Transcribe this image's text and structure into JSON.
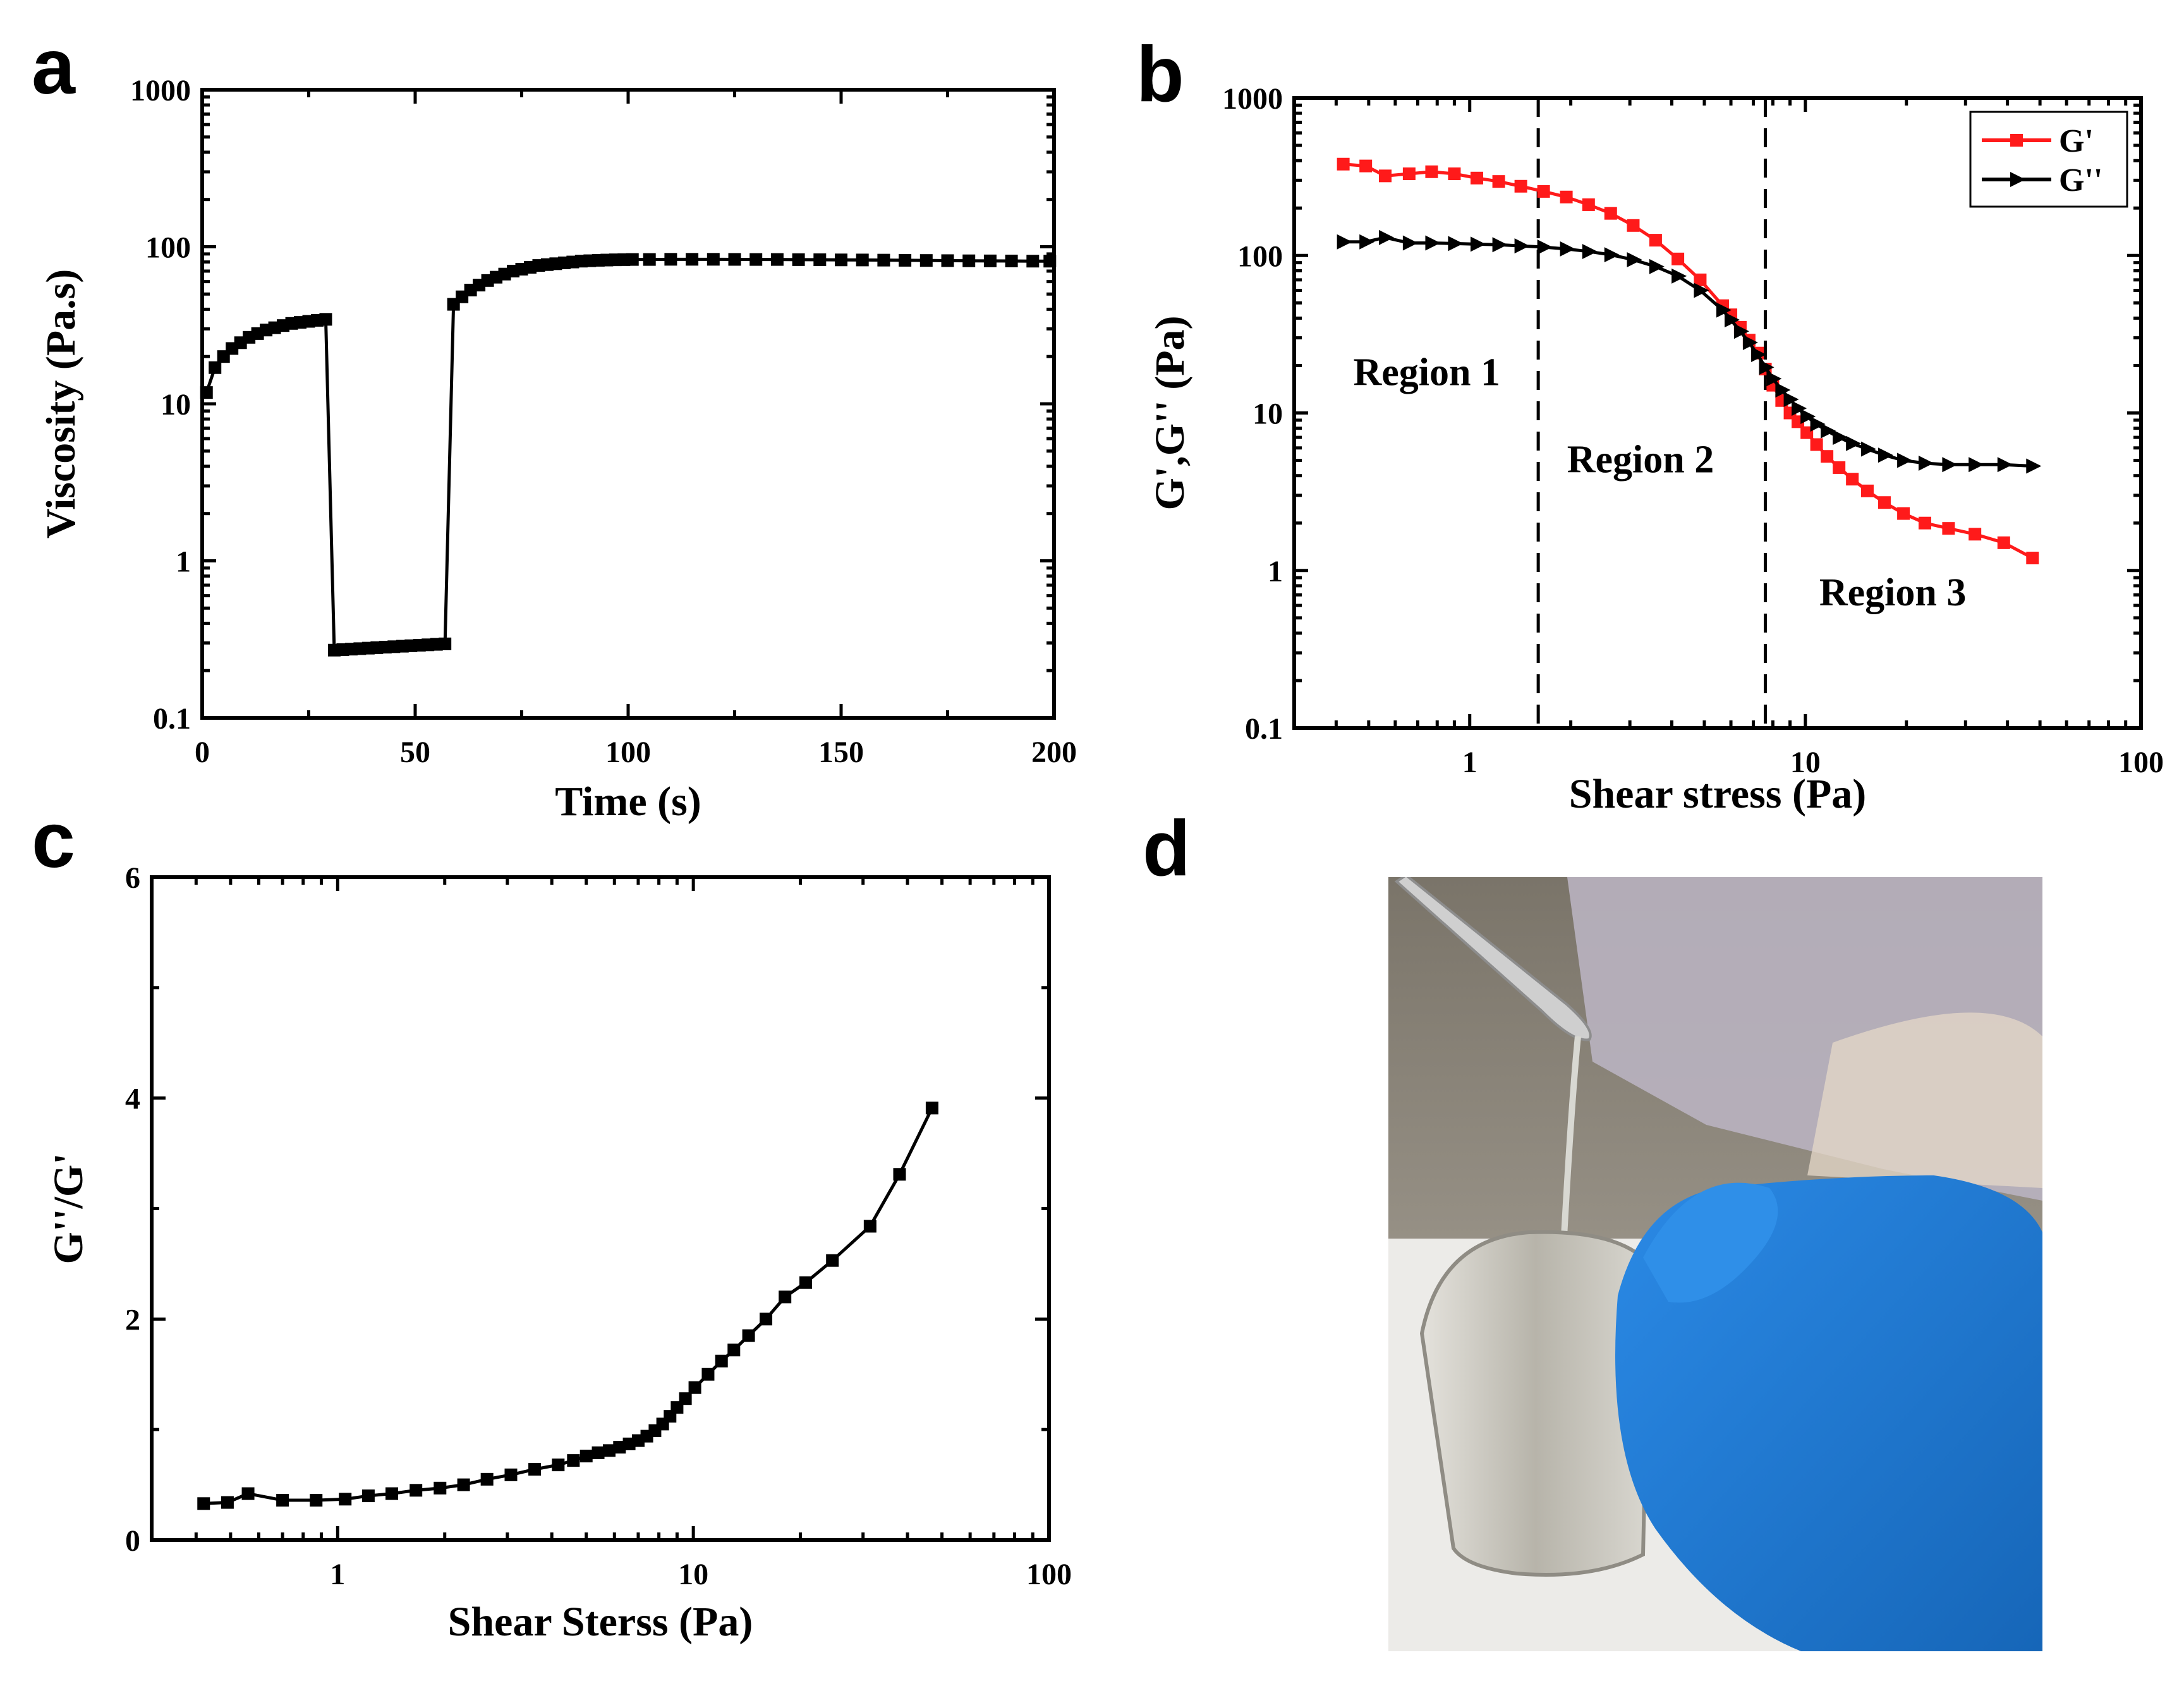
{
  "panels": {
    "a": "a",
    "b": "b",
    "c": "c",
    "d": "d"
  },
  "photo": {
    "description": "spatula dripping gel into beaker held by gloved hand",
    "colors": {
      "glove": "#1f7fd6",
      "background_top": "#8a8378",
      "coat": "#b9b3c0",
      "beaker": "#c8c6bd"
    }
  },
  "chart_data": [
    {
      "id": "a",
      "type": "scatter",
      "title": "",
      "xlabel": "Time (s)",
      "ylabel": "Viscosity (Pa.s)",
      "xscale": "linear",
      "yscale": "log",
      "xlim": [
        0,
        200
      ],
      "ylim": [
        0.1,
        1000
      ],
      "xticks": [
        0,
        50,
        100,
        150,
        200
      ],
      "xtick_labels": [
        "0",
        "50",
        "100",
        "150",
        "200"
      ],
      "yticks": [
        0.1,
        1,
        10,
        100,
        1000
      ],
      "ytick_labels": [
        "0.1",
        "1",
        "10",
        "100",
        "1000"
      ],
      "series": [
        {
          "name": "Viscosity",
          "color": "#000000",
          "marker": "square",
          "x": [
            1,
            3,
            5,
            7,
            9,
            11,
            13,
            15,
            17,
            19,
            21,
            23,
            25,
            27,
            29,
            31,
            33,
            35,
            37,
            39,
            41,
            43,
            45,
            47,
            49,
            51,
            53,
            55,
            57,
            59,
            61,
            63,
            65,
            67,
            69,
            71,
            73,
            75,
            77,
            79,
            81,
            83,
            85,
            87,
            89,
            91,
            93,
            95,
            97,
            99,
            101,
            105,
            110,
            115,
            120,
            125,
            130,
            135,
            140,
            145,
            150,
            155,
            160,
            165,
            170,
            175,
            180,
            185,
            190,
            195,
            199
          ],
          "y": [
            11.8,
            17,
            20,
            22.5,
            24.5,
            26.5,
            28,
            29.5,
            30.5,
            31.5,
            32.5,
            33,
            33.5,
            34,
            34.5,
            0.27,
            0.272,
            0.274,
            0.276,
            0.278,
            0.28,
            0.282,
            0.284,
            0.286,
            0.288,
            0.29,
            0.292,
            0.294,
            0.296,
            43,
            48,
            53,
            57,
            61,
            64,
            67,
            70,
            72,
            74,
            76,
            77,
            78,
            79,
            80,
            81,
            81.5,
            82,
            82.3,
            82.6,
            82.8,
            83,
            83,
            83.2,
            83.2,
            83.2,
            83.1,
            83,
            83,
            82.8,
            82.7,
            82.5,
            82.4,
            82.2,
            82,
            81.8,
            81.6,
            81.4,
            81.3,
            81.2,
            81,
            81
          ]
        }
      ]
    },
    {
      "id": "b",
      "type": "line",
      "title": "",
      "xlabel": "Shear stress (Pa)",
      "ylabel": "G',G'' (Pa)",
      "xscale": "log",
      "yscale": "log",
      "xlim": [
        0.3,
        100
      ],
      "ylim": [
        0.1,
        1000
      ],
      "xticks": [
        1,
        10,
        100
      ],
      "xtick_labels": [
        "1",
        "10",
        "100"
      ],
      "yticks": [
        0.1,
        1,
        10,
        100,
        1000
      ],
      "ytick_labels": [
        "0.1",
        "1",
        "10",
        "100",
        "1000"
      ],
      "vlines": [
        1.6,
        7.6
      ],
      "annotations": [
        {
          "text": "Region 1",
          "x": 0.45,
          "y": 15
        },
        {
          "text": "Region 2",
          "x": 1.95,
          "y": 4.2
        },
        {
          "text": "Region 3",
          "x": 11,
          "y": 0.6
        }
      ],
      "legend": "top-right",
      "series": [
        {
          "name": "G'",
          "color": "#ff1a1a",
          "marker": "square",
          "x": [
            0.42,
            0.49,
            0.56,
            0.66,
            0.77,
            0.9,
            1.05,
            1.22,
            1.42,
            1.66,
            1.94,
            2.26,
            2.63,
            3.07,
            3.58,
            4.17,
            4.86,
            5.67,
            6.0,
            6.4,
            6.8,
            7.2,
            7.6,
            8.0,
            8.5,
            9.0,
            9.5,
            10.1,
            10.8,
            11.6,
            12.6,
            13.8,
            15.3,
            17.2,
            19.6,
            22.7,
            26.7,
            32,
            39,
            47.5
          ],
          "y": [
            380,
            370,
            320,
            330,
            340,
            330,
            310,
            295,
            275,
            255,
            235,
            210,
            185,
            155,
            125,
            95,
            70,
            48,
            42,
            35,
            29,
            24,
            19,
            15,
            12,
            10,
            8.8,
            7.5,
            6.3,
            5.3,
            4.5,
            3.8,
            3.2,
            2.7,
            2.3,
            2.0,
            1.85,
            1.7,
            1.5,
            1.2
          ]
        },
        {
          "name": "G''",
          "color": "#000000",
          "marker": "triangle-right",
          "x": [
            0.42,
            0.49,
            0.56,
            0.66,
            0.77,
            0.9,
            1.05,
            1.22,
            1.42,
            1.66,
            1.94,
            2.26,
            2.63,
            3.07,
            3.58,
            4.17,
            4.86,
            5.67,
            6.0,
            6.4,
            6.8,
            7.2,
            7.6,
            8.0,
            8.5,
            9.0,
            9.5,
            10.1,
            10.8,
            11.6,
            12.6,
            13.8,
            15.3,
            17.2,
            19.6,
            22.7,
            26.7,
            32,
            39,
            47.5
          ],
          "y": [
            122,
            122,
            130,
            120,
            120,
            119,
            118,
            117,
            115,
            113,
            110,
            106,
            101,
            94,
            85,
            74,
            60,
            45,
            39,
            33,
            28,
            23.5,
            19.5,
            16.5,
            14,
            12.2,
            10.7,
            9.5,
            8.5,
            7.7,
            7.0,
            6.4,
            5.9,
            5.4,
            5.0,
            4.8,
            4.7,
            4.7,
            4.7,
            4.6
          ]
        }
      ]
    },
    {
      "id": "c",
      "type": "line",
      "title": "",
      "xlabel": "Shear Sterss (Pa)",
      "ylabel": "G''/G'",
      "xscale": "log",
      "yscale": "linear",
      "xlim": [
        0.3,
        100
      ],
      "ylim": [
        0,
        6
      ],
      "xticks": [
        1,
        10,
        100
      ],
      "xtick_labels": [
        "1",
        "10",
        "100"
      ],
      "yticks": [
        0,
        2,
        4,
        6
      ],
      "ytick_labels": [
        "0",
        "2",
        "4",
        "6"
      ],
      "series": [
        {
          "name": "G''/G'",
          "color": "#000000",
          "marker": "square",
          "x": [
            0.42,
            0.49,
            0.56,
            0.7,
            0.87,
            1.05,
            1.22,
            1.42,
            1.66,
            1.94,
            2.26,
            2.63,
            3.07,
            3.58,
            4.17,
            4.6,
            5.0,
            5.4,
            5.8,
            6.2,
            6.6,
            7.0,
            7.4,
            7.8,
            8.2,
            8.6,
            9.0,
            9.5,
            10.1,
            11.0,
            12.0,
            13.0,
            14.3,
            16.0,
            18.1,
            20.7,
            24.6,
            31.4,
            38.0,
            46.9
          ],
          "y": [
            0.33,
            0.34,
            0.42,
            0.36,
            0.36,
            0.37,
            0.4,
            0.42,
            0.45,
            0.47,
            0.5,
            0.55,
            0.59,
            0.64,
            0.68,
            0.72,
            0.76,
            0.79,
            0.81,
            0.84,
            0.87,
            0.9,
            0.94,
            0.99,
            1.05,
            1.12,
            1.2,
            1.28,
            1.38,
            1.5,
            1.62,
            1.72,
            1.85,
            2.0,
            2.2,
            2.33,
            2.53,
            2.84,
            3.31,
            3.91
          ]
        }
      ]
    }
  ]
}
